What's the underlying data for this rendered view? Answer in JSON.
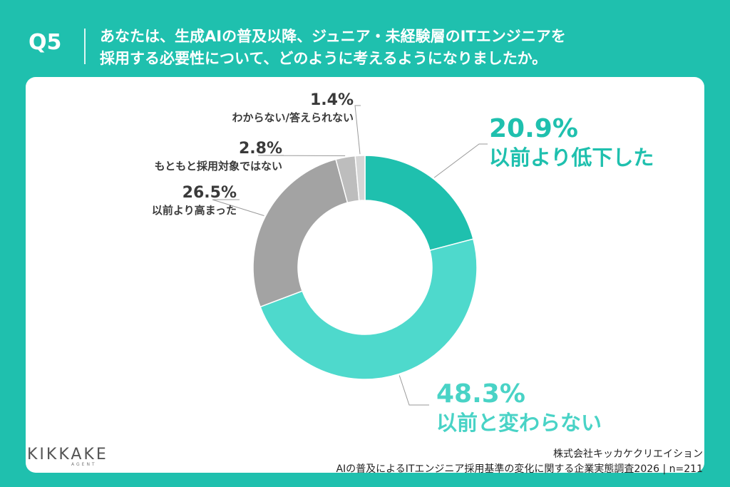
{
  "header": {
    "q_label": "Q5",
    "question_line1": "あなたは、生成AIの普及以降、ジュニア・未経験層のITエンジニアを",
    "question_line2": "採用する必要性について、どのように考えるようになりましたか。"
  },
  "chart_data": {
    "type": "pie",
    "donut": true,
    "start": "top",
    "direction": "clockwise",
    "series": [
      {
        "name": "以前より低下した",
        "value": 20.9,
        "label": "20.9%",
        "color": "#1fc0ae"
      },
      {
        "name": "以前と変わらない",
        "value": 48.3,
        "label": "48.3%",
        "color": "#4ed9cc"
      },
      {
        "name": "以前より高まった",
        "value": 26.5,
        "label": "26.5%",
        "color": "#a3a3a3"
      },
      {
        "name": "もともと採用対象ではない",
        "value": 2.8,
        "label": "2.8%",
        "color": "#bdbdbd"
      },
      {
        "name": "わからない/答えられない",
        "value": 1.4,
        "label": "1.4%",
        "color": "#d6d6d6"
      }
    ]
  },
  "footer": {
    "logo": "KIKKAKE",
    "logo_sub": "AGENT",
    "company": "株式会社キッカケクリエイション",
    "survey": "AIの普及によるITエンジニア採用基準の変化に関する企業実態調査2026 | n=211"
  }
}
